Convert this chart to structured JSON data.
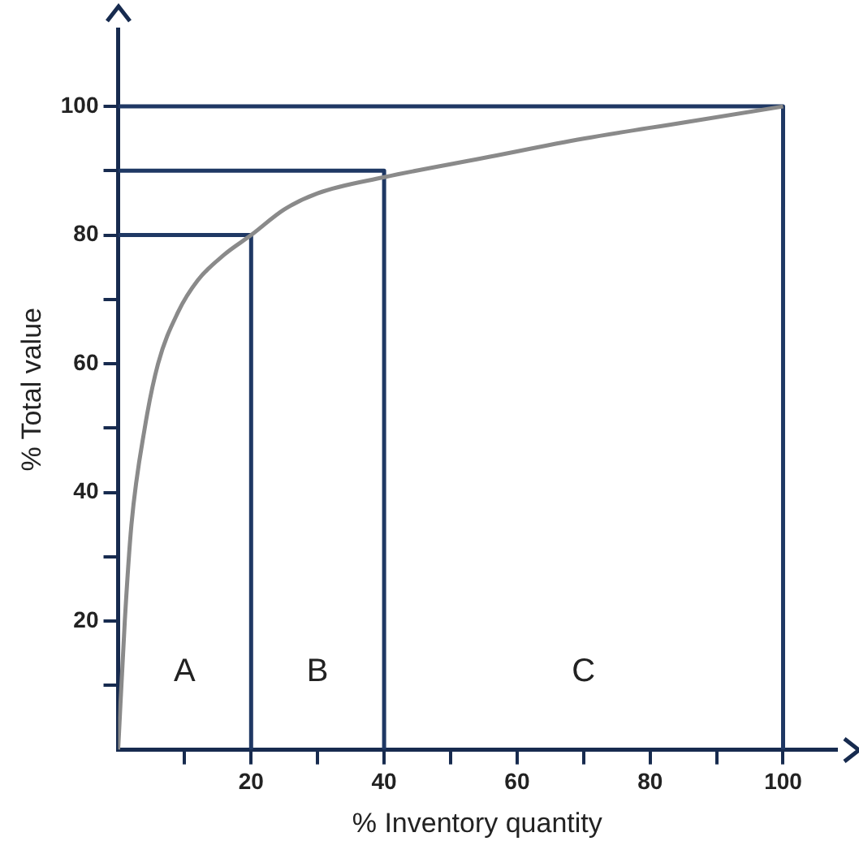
{
  "chart_data": {
    "type": "line",
    "xlabel": "% Inventory quantity",
    "ylabel": "% Total value",
    "xlim": [
      0,
      108
    ],
    "ylim": [
      0,
      112
    ],
    "xticks": [
      {
        "value": 10,
        "label": null
      },
      20,
      {
        "value": 30,
        "label": null
      },
      40,
      {
        "value": 50,
        "label": null
      },
      60,
      {
        "value": 70,
        "label": null
      },
      80,
      {
        "value": 90,
        "label": null
      },
      100
    ],
    "yticks": [
      {
        "value": 10,
        "label": null
      },
      20,
      {
        "value": 30,
        "label": null
      },
      40,
      {
        "value": 50,
        "label": null
      },
      60,
      {
        "value": 70,
        "label": null
      },
      80,
      {
        "value": 90,
        "label": null
      },
      100
    ],
    "grid": false,
    "legend": false,
    "marker": "none",
    "line_style": "solid",
    "series": [
      {
        "color": "#8a8a8a",
        "x": [
          0,
          1,
          2,
          4,
          6,
          9,
          12,
          16,
          20,
          25,
          30,
          40,
          55,
          70,
          85,
          100
        ],
        "values": [
          0,
          20,
          35,
          50,
          60,
          68,
          73,
          77,
          80,
          84,
          86.5,
          89,
          92,
          95,
          97.5,
          100
        ]
      },
      {
        "color": "#1f3864",
        "x": [
          0,
          20,
          20
        ],
        "values": [
          80,
          80,
          0
        ]
      },
      {
        "color": "#1f3864",
        "x": [
          0,
          40,
          40
        ],
        "values": [
          90,
          90,
          0
        ]
      },
      {
        "color": "#1f3864",
        "x": [
          0,
          100,
          100
        ],
        "values": [
          100,
          100,
          0
        ]
      }
    ],
    "annotations": [
      "A",
      "B",
      "C"
    ]
  }
}
